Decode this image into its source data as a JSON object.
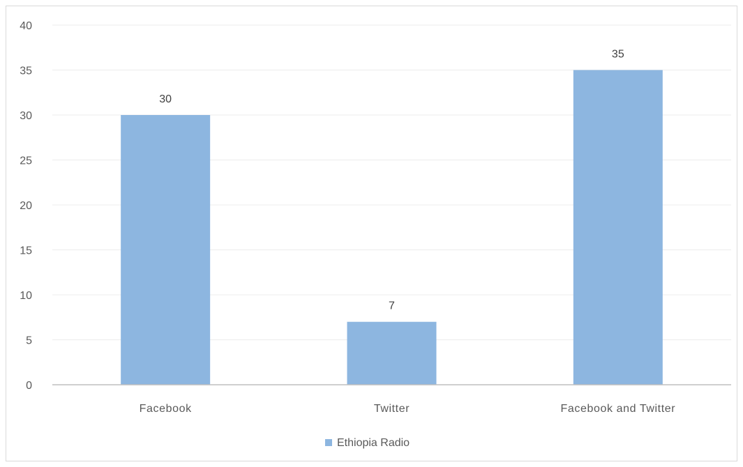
{
  "chart_data": {
    "type": "bar",
    "categories": [
      "Facebook",
      "Twitter",
      "Facebook and Twitter"
    ],
    "series": [
      {
        "name": "Ethiopia Radio",
        "values": [
          30,
          7,
          35
        ],
        "color": "#8db6e0"
      }
    ],
    "ylim": [
      0,
      40
    ],
    "yticks": [
      0,
      5,
      10,
      15,
      20,
      25,
      30,
      35,
      40
    ],
    "grid": true,
    "legend": "bottom",
    "data_labels": true,
    "title": "",
    "xlabel": "",
    "ylabel": ""
  }
}
